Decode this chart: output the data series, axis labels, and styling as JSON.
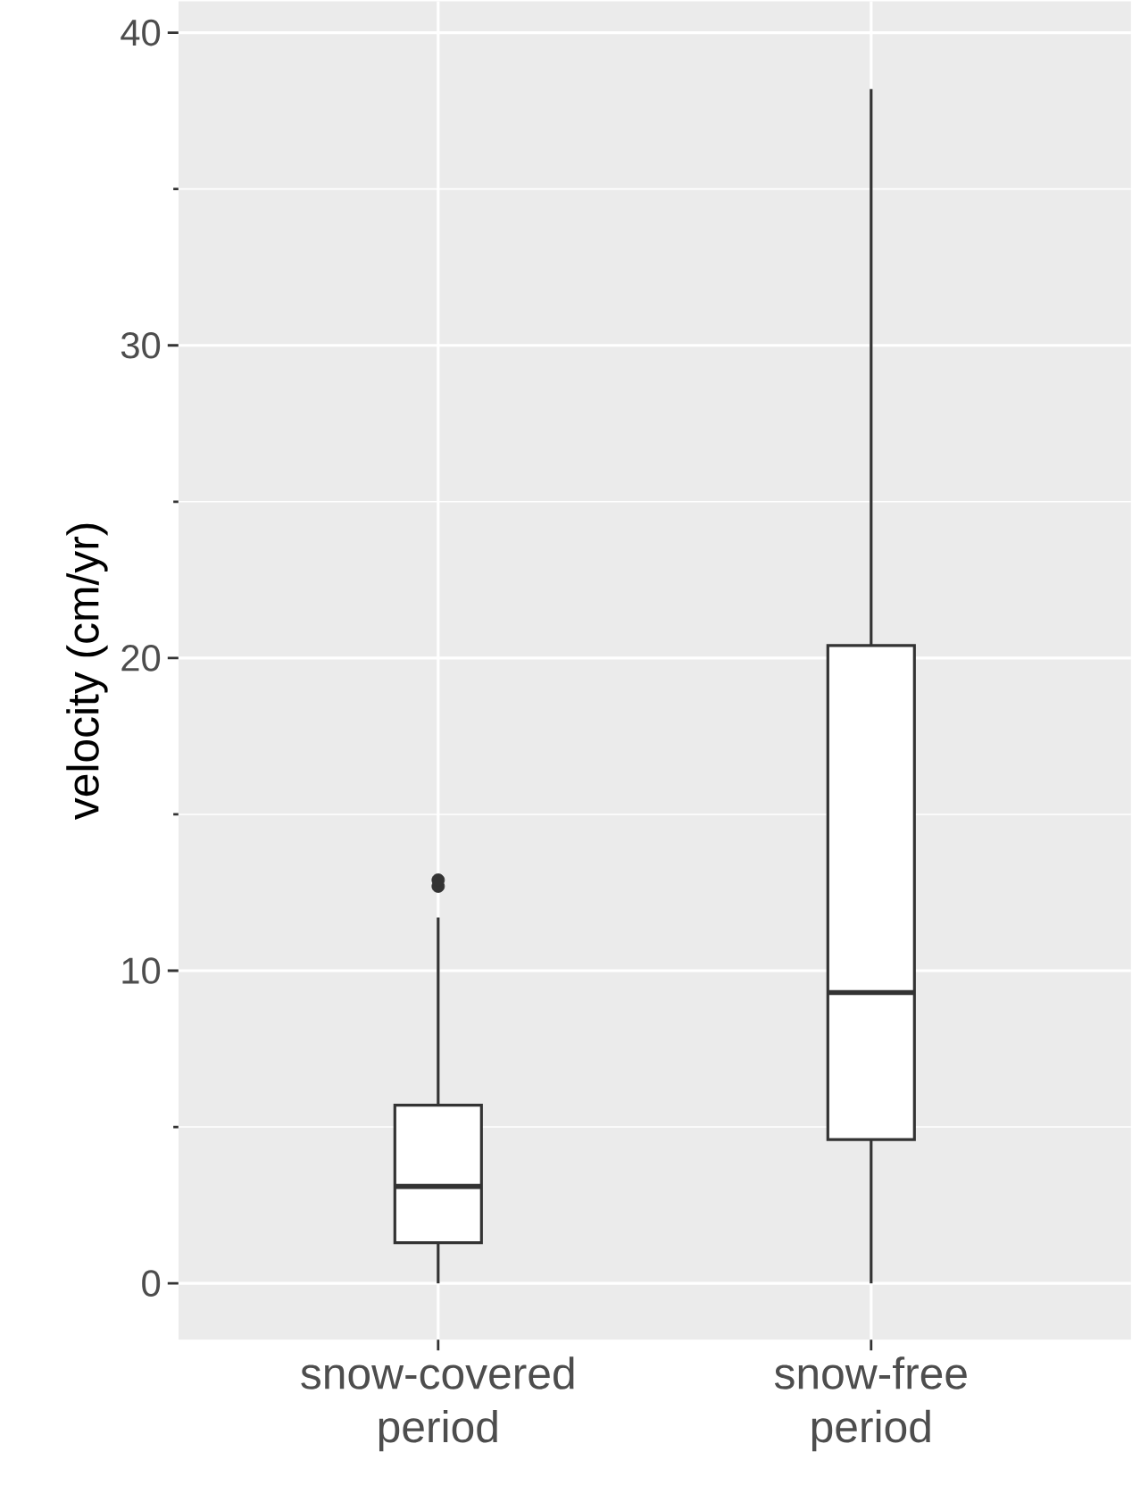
{
  "chart_data": {
    "type": "box",
    "ylabel": "velocity (cm/yr)",
    "categories": [
      "snow-covered period",
      "snow-free period"
    ],
    "ylim": [
      -1.8,
      41
    ],
    "yticks": [
      0,
      10,
      20,
      30,
      40
    ],
    "grid": true,
    "series": [
      {
        "color": "#333333",
        "boxes": [
          {
            "low": 0,
            "q1": 1.3,
            "median": 3.1,
            "q3": 5.7,
            "high": 11.7,
            "outliers": [
              12.7,
              12.9
            ]
          },
          {
            "low": 0,
            "q1": 4.6,
            "median": 9.3,
            "q3": 20.4,
            "high": 38.2
          }
        ]
      }
    ]
  }
}
